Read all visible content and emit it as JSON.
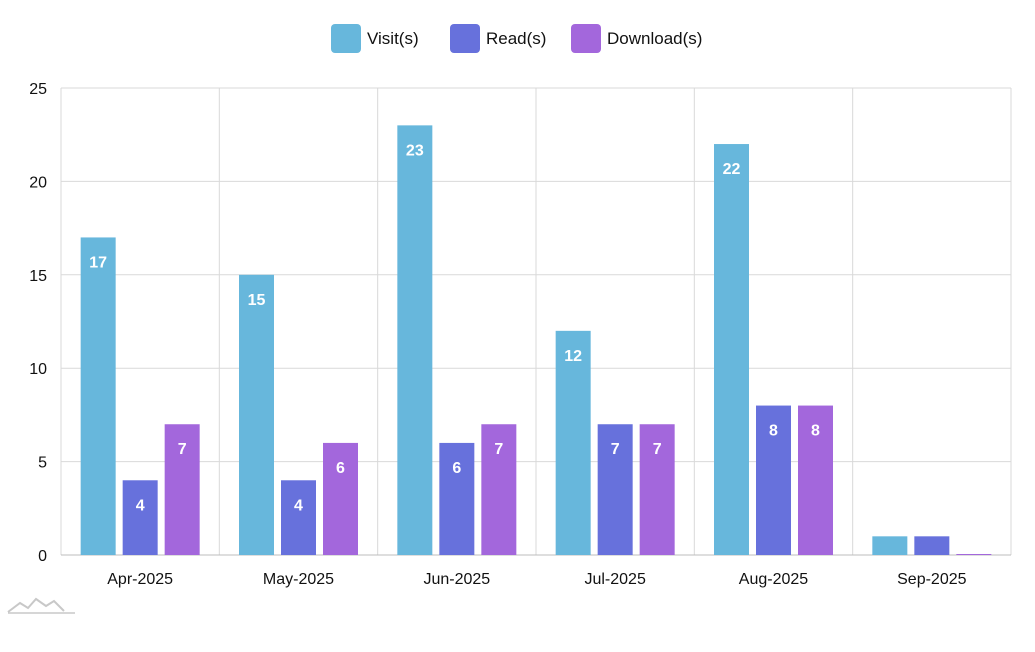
{
  "chart_data": {
    "type": "bar",
    "categories": [
      "Apr-2025",
      "May-2025",
      "Jun-2025",
      "Jul-2025",
      "Aug-2025",
      "Sep-2025"
    ],
    "series": [
      {
        "name": "Visit(s)",
        "color": "#67b7dc",
        "values": [
          17,
          15,
          23,
          12,
          22,
          1
        ]
      },
      {
        "name": "Read(s)",
        "color": "#6771dc",
        "values": [
          4,
          4,
          6,
          7,
          8,
          1
        ]
      },
      {
        "name": "Download(s)",
        "color": "#a367dc",
        "values": [
          7,
          6,
          7,
          7,
          8,
          0
        ]
      }
    ],
    "ylim": [
      0,
      25
    ],
    "yticks": [
      0,
      5,
      10,
      15,
      20,
      25
    ],
    "grid": true,
    "legend_position": "top-center",
    "data_labels": true,
    "xlabel": "",
    "ylabel": ""
  }
}
